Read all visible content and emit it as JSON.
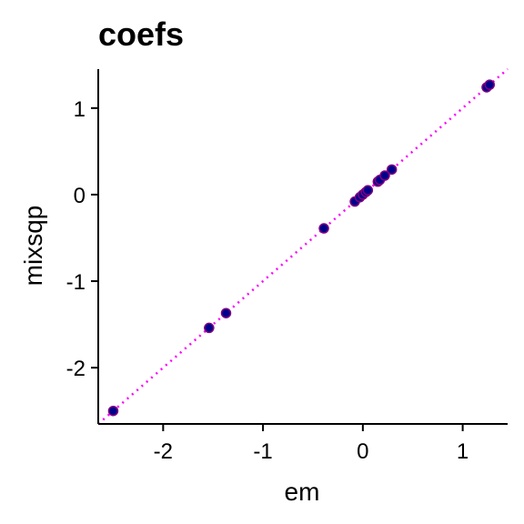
{
  "chart_data": {
    "type": "scatter",
    "title": "coefs",
    "xlabel": "em",
    "ylabel": "mixsqp",
    "xlim": [
      -2.65,
      1.45
    ],
    "ylim": [
      -2.65,
      1.45
    ],
    "x_ticks": [
      -2,
      -1,
      0,
      1
    ],
    "y_ticks": [
      -2,
      -1,
      0,
      1
    ],
    "x_tick_labels": [
      "-2",
      "-1",
      "0",
      "1"
    ],
    "y_tick_labels": [
      "-2",
      "-1",
      "0",
      "1"
    ],
    "grid": false,
    "legend": "none",
    "reference_line": {
      "type": "identity",
      "slope": 1,
      "intercept": 0,
      "style": "dotted",
      "color": "#ff00ff"
    },
    "colors": {
      "points_fill": "#00008b",
      "points_edge": "#800080",
      "line": "#ff00ff",
      "axis": "#000000"
    },
    "points": [
      {
        "x": -2.5,
        "y": -2.5
      },
      {
        "x": -1.54,
        "y": -1.54
      },
      {
        "x": -1.37,
        "y": -1.37
      },
      {
        "x": -0.39,
        "y": -0.39
      },
      {
        "x": -0.08,
        "y": -0.08
      },
      {
        "x": -0.03,
        "y": -0.03
      },
      {
        "x": 0.0,
        "y": 0.0
      },
      {
        "x": 0.03,
        "y": 0.03
      },
      {
        "x": 0.05,
        "y": 0.05
      },
      {
        "x": 0.15,
        "y": 0.15
      },
      {
        "x": 0.17,
        "y": 0.17
      },
      {
        "x": 0.22,
        "y": 0.22
      },
      {
        "x": 0.29,
        "y": 0.29
      },
      {
        "x": 1.24,
        "y": 1.24
      },
      {
        "x": 1.27,
        "y": 1.27
      }
    ]
  }
}
